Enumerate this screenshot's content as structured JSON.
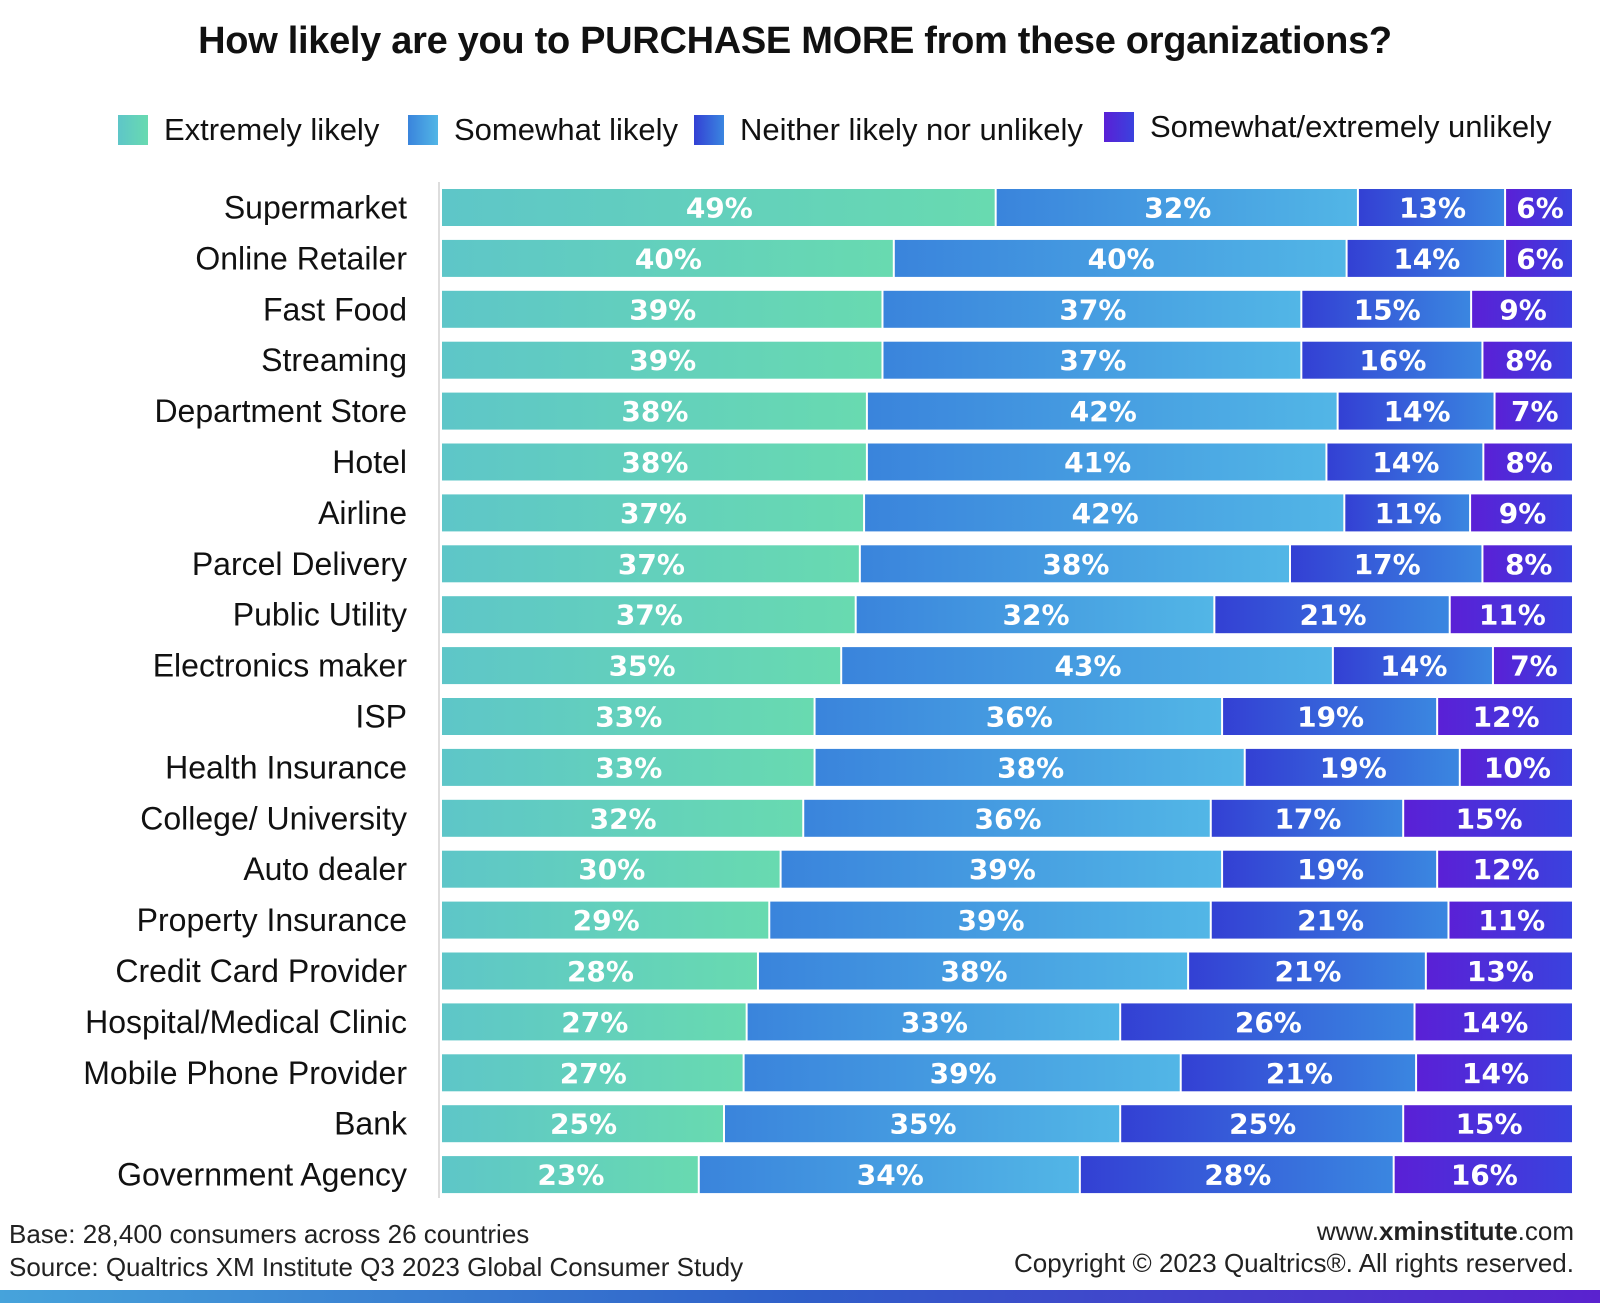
{
  "chart_data": {
    "type": "bar",
    "orientation": "horizontal",
    "stacked": true,
    "title": "How likely are you to PURCHASE MORE from these organizations?",
    "categories": [
      "Supermarket",
      "Online Retailer",
      "Fast Food",
      "Streaming",
      "Department Store",
      "Hotel",
      "Airline",
      "Parcel Delivery",
      "Public Utility",
      "Electronics maker",
      "ISP",
      "Health Insurance",
      "College/ University",
      "Auto dealer",
      "Property Insurance",
      "Credit Card Provider",
      "Hospital/Medical Clinic",
      "Mobile Phone Provider",
      "Bank",
      "Government Agency"
    ],
    "series": [
      {
        "name": "Extremely likely",
        "color": "#62d2c0",
        "gradient": [
          "#5ec6c8",
          "#68dab0"
        ],
        "values": [
          49,
          40,
          39,
          39,
          38,
          38,
          37,
          37,
          37,
          35,
          33,
          33,
          32,
          30,
          29,
          28,
          27,
          27,
          25,
          23
        ]
      },
      {
        "name": "Somewhat likely",
        "color": "#45a0e2",
        "gradient": [
          "#3a84dc",
          "#52b6e6"
        ],
        "values": [
          32,
          40,
          37,
          37,
          42,
          41,
          42,
          38,
          32,
          43,
          36,
          38,
          36,
          39,
          39,
          38,
          33,
          39,
          35,
          34
        ]
      },
      {
        "name": "Neither likely nor unlikely",
        "color": "#3460d8",
        "gradient": [
          "#3340d4",
          "#3a86e0"
        ],
        "values": [
          13,
          14,
          15,
          16,
          14,
          14,
          11,
          17,
          21,
          14,
          19,
          19,
          17,
          19,
          21,
          21,
          26,
          21,
          25,
          28
        ]
      },
      {
        "name": "Somewhat/extremely unlikely",
        "color": "#4a2ed8",
        "gradient": [
          "#5a20d6",
          "#3a42de"
        ],
        "values": [
          6,
          6,
          9,
          8,
          7,
          8,
          9,
          8,
          11,
          7,
          12,
          10,
          15,
          12,
          11,
          13,
          14,
          14,
          15,
          16
        ]
      }
    ],
    "value_suffix": "%",
    "legend_position": "top",
    "grid": false
  },
  "footer": {
    "base": "Base: 28,400 consumers across 26 countries",
    "source": "Source: Qualtrics XM Institute Q3 2023 Global Consumer Study",
    "url_prefix": "www.",
    "url_bold": "xminstitute",
    "url_suffix": ".com",
    "copyright": "Copyright © 2023 Qualtrics®. All rights reserved."
  }
}
